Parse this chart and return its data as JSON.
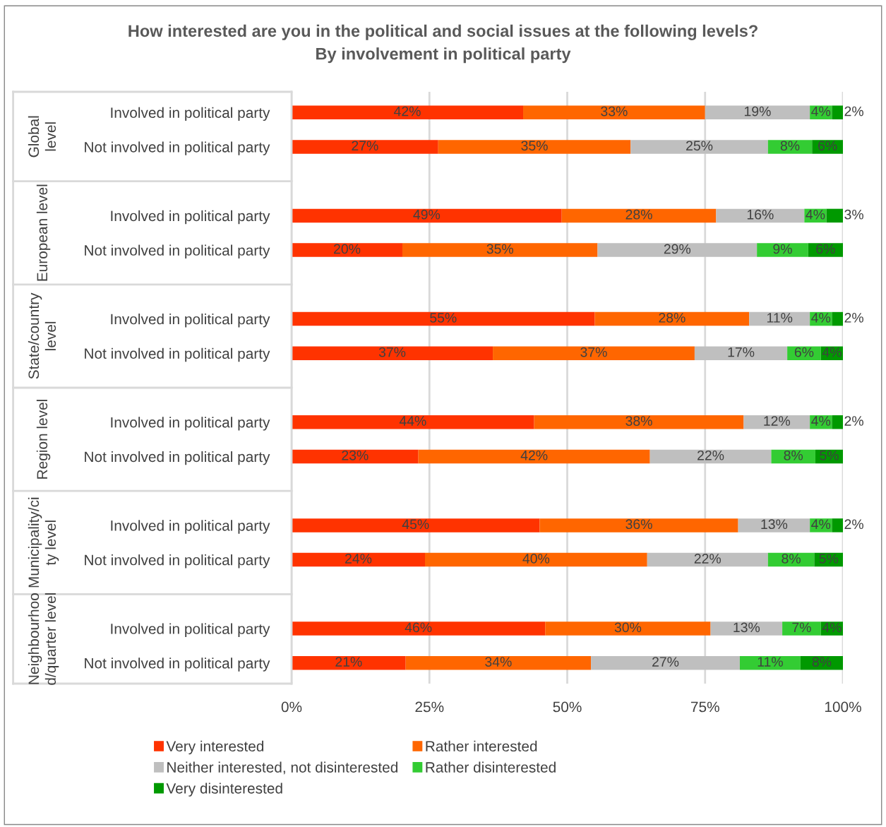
{
  "chart_data": {
    "type": "bar",
    "orientation": "horizontal",
    "stacked": true,
    "title": "How interested are you in the political and social issues at the following levels?\nBy involvement in political party",
    "categories": [
      "Involved in political party",
      "Not involved in political party",
      "Involved in political party",
      "Not involved in political party",
      "Involved in political party",
      "Not involved in political party",
      "Involved in political party",
      "Not involved in political party",
      "Involved in political party",
      "Not involved in political party",
      "Involved in political party",
      "Not involved in political party"
    ],
    "annotations": [
      "Global\nlevel",
      "European level",
      "State/country\nlevel",
      "Region level",
      "Municipality/ci\nty level",
      "Neighbourhoo\nd/quarter level"
    ],
    "series": [
      {
        "name": "Very interested",
        "color": "#ff3300",
        "values": [
          42,
          26.6,
          49,
          20.1,
          55,
          36.5,
          44,
          23,
          45,
          24.2,
          46,
          20.7
        ],
        "value_labels": [
          "42%",
          "27%",
          "49%",
          "20%",
          "55%",
          "37%",
          "44%",
          "23%",
          "45%",
          "24%",
          "46%",
          "21%"
        ]
      },
      {
        "name": "Rather interested",
        "color": "#ff6600",
        "values": [
          33,
          34.9,
          28,
          35.4,
          28,
          36.6,
          38,
          42,
          36,
          40.3,
          30,
          33.6
        ],
        "value_labels": [
          "33%",
          "35%",
          "28%",
          "35%",
          "28%",
          "37%",
          "38%",
          "42%",
          "36%",
          "40%",
          "30%",
          "34%"
        ]
      },
      {
        "name": "Neither interested, not disinterested",
        "color": "#bfbfbf",
        "values": [
          19,
          24.9,
          16,
          28.9,
          11,
          16.8,
          12,
          22,
          13,
          21.9,
          13,
          27.0
        ],
        "value_labels": [
          "19%",
          "25%",
          "16%",
          "29%",
          "11%",
          "17%",
          "12%",
          "22%",
          "13%",
          "22%",
          "13%",
          "27%"
        ]
      },
      {
        "name": "Rather disinterested",
        "color": "#33cc33",
        "values": [
          4,
          8,
          4,
          9.3,
          4,
          6.1,
          4,
          8,
          4,
          8.4,
          7,
          11.0
        ],
        "value_labels": [
          "4%",
          "8%",
          "4%",
          "9%",
          "4%",
          "6%",
          "4%",
          "8%",
          "4%",
          "8%",
          "7%",
          "11%"
        ]
      },
      {
        "name": "Very disinterested",
        "color": "#009900",
        "values": [
          2,
          5.6,
          3,
          6.3,
          2,
          4.0,
          2,
          5,
          2,
          5.2,
          4,
          7.7
        ],
        "value_labels": [
          "2%",
          "6%",
          "3%",
          "6%",
          "2%",
          "4%",
          "2%",
          "5%",
          "2%",
          "5%",
          "4%",
          "8%"
        ]
      }
    ],
    "xlim": [
      0,
      100
    ],
    "xticks": [
      {
        "value": 0,
        "label": "0%"
      },
      {
        "value": 25,
        "label": "25%"
      },
      {
        "value": 50,
        "label": "50%"
      },
      {
        "value": 75,
        "label": "75%"
      },
      {
        "value": 100,
        "label": "100%"
      }
    ],
    "grid": "x",
    "legend": "bottom"
  }
}
